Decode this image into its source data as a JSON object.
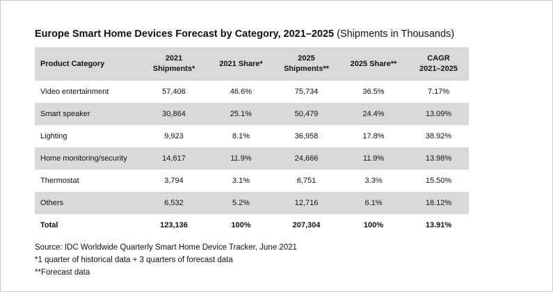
{
  "title": "Europe Smart Home Devices Forecast by Category, 2021–2025",
  "subtitle": "(Shipments in Thousands)",
  "table": {
    "headers": [
      [
        "Product Category"
      ],
      [
        "2021",
        "Shipments*"
      ],
      [
        "2021 Share*"
      ],
      [
        "2025",
        "Shipments**"
      ],
      [
        "2025 Share**"
      ],
      [
        "CAGR",
        "2021–2025"
      ]
    ],
    "rows": [
      [
        "Video entertainment",
        "57,406",
        "46.6%",
        "75,734",
        "36.5%",
        "7.17%"
      ],
      [
        "Smart speaker",
        "30,864",
        "25.1%",
        "50,479",
        "24.4%",
        "13.09%"
      ],
      [
        "Lighting",
        "9,923",
        "8.1%",
        "36,958",
        "17.8%",
        "38.92%"
      ],
      [
        "Home monitoring/security",
        "14,617",
        "11.9%",
        "24,666",
        "11.9%",
        "13.98%"
      ],
      [
        "Thermostat",
        "3,794",
        "3.1%",
        "6,751",
        "3.3%",
        "15.50%"
      ],
      [
        "Others",
        "6,532",
        "5.2%",
        "12,716",
        "6.1%",
        "18.12%"
      ]
    ],
    "total": [
      "Total",
      "123,136",
      "100%",
      "207,304",
      "100%",
      "13.91%"
    ]
  },
  "notes": {
    "source": "Source: IDC Worldwide Quarterly Smart Home Device Tracker, June 2021",
    "note1": "*1 quarter of historical data + 3 quarters of forecast data",
    "note2": "**Forecast data"
  }
}
